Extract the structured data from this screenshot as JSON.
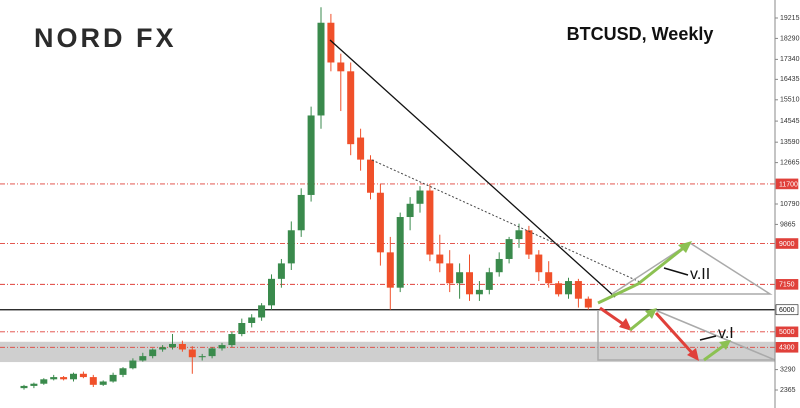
{
  "chart_data": {
    "type": "candlestick",
    "title": "BTCUSD, Weekly",
    "logo": "NORD FX",
    "categories": [
      null,
      null,
      null,
      null,
      null,
      null,
      null,
      null,
      null,
      null,
      null,
      null,
      null,
      null,
      null,
      null,
      null,
      null,
      null,
      null,
      null,
      null,
      null,
      null,
      null,
      null,
      null,
      null,
      null,
      null,
      null,
      null,
      null,
      null,
      null,
      null,
      null,
      null,
      null,
      null,
      null,
      null,
      null,
      null,
      null,
      null,
      null,
      null,
      null,
      null,
      null,
      null,
      null,
      null,
      null,
      null,
      null,
      null
    ],
    "open": [
      2450,
      2550,
      2650,
      2850,
      2950,
      2850,
      3100,
      2950,
      2600,
      2750,
      3050,
      3350,
      3700,
      3900,
      4200,
      4300,
      4450,
      4200,
      3850,
      3900,
      4250,
      4400,
      4900,
      5400,
      5650,
      6200,
      7400,
      8100,
      9600,
      11200,
      14800,
      19000,
      17200,
      16800,
      13800,
      12800,
      11300,
      8600,
      7000,
      10200,
      10800,
      11400,
      8500,
      8100,
      7200,
      7700,
      6700,
      6900,
      7700,
      8300,
      9200,
      9600,
      8500,
      7700,
      7200,
      6700,
      7300,
      6500
    ],
    "high": [
      2600,
      2700,
      2900,
      3050,
      3000,
      3150,
      3200,
      3050,
      2800,
      3150,
      3400,
      3800,
      4050,
      4250,
      4400,
      4900,
      4600,
      4350,
      4000,
      4300,
      4500,
      5000,
      5600,
      5800,
      6300,
      7600,
      8300,
      10000,
      11500,
      15200,
      19700,
      19400,
      17600,
      17200,
      14200,
      13000,
      11700,
      9300,
      10400,
      11100,
      11600,
      11700,
      9400,
      8700,
      8100,
      8500,
      7300,
      7900,
      8600,
      9300,
      9900,
      9800,
      8700,
      8200,
      7300,
      7450,
      7400,
      6600
    ],
    "low": [
      2380,
      2450,
      2600,
      2800,
      2800,
      2750,
      2900,
      2500,
      2550,
      2700,
      2950,
      3300,
      3650,
      3800,
      4100,
      4200,
      4100,
      3100,
      3700,
      3800,
      4150,
      4300,
      4800,
      5200,
      5500,
      6000,
      7000,
      7800,
      9300,
      10900,
      14200,
      16800,
      15000,
      13000,
      12300,
      11000,
      8000,
      6000,
      6800,
      9600,
      10400,
      8200,
      7700,
      6800,
      6500,
      6400,
      6400,
      6700,
      7500,
      8100,
      8800,
      8300,
      7300,
      7000,
      6600,
      6500,
      6100,
      6000
    ],
    "close": [
      2550,
      2650,
      2850,
      2950,
      2850,
      3100,
      2950,
      2600,
      2750,
      3050,
      3350,
      3700,
      3900,
      4200,
      4300,
      4450,
      4200,
      3850,
      3900,
      4250,
      4400,
      4900,
      5400,
      5650,
      6200,
      7400,
      8100,
      9600,
      11200,
      14800,
      19000,
      17200,
      16800,
      13500,
      12800,
      11300,
      8600,
      7000,
      10200,
      10800,
      11400,
      8500,
      8100,
      7200,
      7700,
      6700,
      6900,
      7700,
      8300,
      9200,
      9600,
      8500,
      7700,
      7200,
      6700,
      7300,
      6500,
      6100
    ],
    "up_color": "#3a8a4c",
    "down_color": "#f0502a",
    "ylim": [
      1550,
      20030
    ],
    "yticks": [
      19215,
      18290,
      17340,
      16435,
      15510,
      14545,
      13590,
      12665,
      10790,
      9865,
      3290,
      2365
    ],
    "levels": [
      {
        "value": 11700,
        "color": "#e0403a",
        "style": "dashed"
      },
      {
        "value": 9000,
        "color": "#e0403a",
        "style": "dashed"
      },
      {
        "value": 7150,
        "color": "#e0403a",
        "style": "dashed"
      },
      {
        "value": 6000,
        "color": "#111111",
        "style": "solid"
      },
      {
        "value": 5000,
        "color": "#e0403a",
        "style": "dashed"
      },
      {
        "value": 4300,
        "color": "#e0403a",
        "style": "dashed"
      }
    ],
    "zones": [
      {
        "from": 3630,
        "to": 4550,
        "color": "#cfcfcf"
      }
    ],
    "annotations": [
      "v.II",
      "v.I"
    ]
  }
}
